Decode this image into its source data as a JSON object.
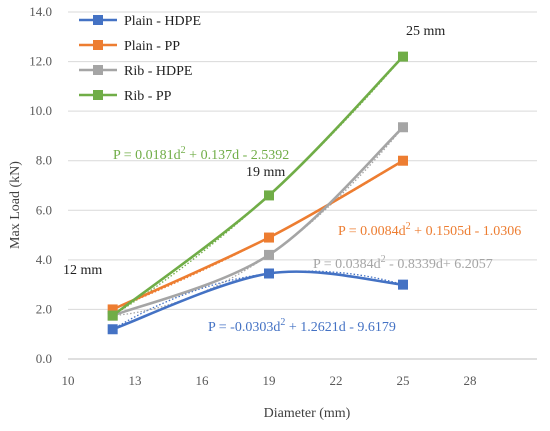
{
  "chart_data": {
    "type": "line",
    "x": [
      12,
      19,
      25
    ],
    "xlabel": "Diameter (mm)",
    "ylabel": "Max Load (kN)",
    "xlim": [
      10,
      31
    ],
    "ylim": [
      0,
      14
    ],
    "x_ticks": [
      "10",
      "13",
      "16",
      "19",
      "22",
      "25",
      "28"
    ],
    "y_ticks": [
      "0.0",
      "2.0",
      "4.0",
      "6.0",
      "8.0",
      "10.0",
      "12.0",
      "14.0"
    ],
    "grid": "horizontal",
    "legend": "top-left",
    "series": [
      {
        "name": "Plain - HDPE",
        "color": "#4472C4",
        "values": [
          1.2,
          3.45,
          3.0
        ]
      },
      {
        "name": "Plain - PP",
        "color": "#ED7D31",
        "values": [
          2.0,
          4.9,
          8.0
        ]
      },
      {
        "name": "Rib - HDPE",
        "color": "#A5A5A5",
        "values": [
          1.75,
          4.2,
          9.35
        ]
      },
      {
        "name": "Rib - PP",
        "color": "#70AD47",
        "values": [
          1.75,
          6.6,
          12.2
        ]
      }
    ],
    "size_labels": [
      "12 mm",
      "19 mm",
      "25 mm"
    ],
    "equations": [
      {
        "series": "Rib - PP",
        "pre": "P = 0.0181d",
        "post": " + 0.137d - 2.5392"
      },
      {
        "series": "Plain - PP",
        "pre": "P = 0.0084d",
        "post": " + 0.1505d - 1.0306"
      },
      {
        "series": "Rib - HDPE",
        "pre": "P = 0.0384d",
        "post": " - 0.8339d+ 6.2057"
      },
      {
        "series": "Plain - HDPE",
        "pre": "P = -0.0303d",
        "post": " + 1.2621d - 9.6179"
      }
    ],
    "superscript": "2"
  }
}
